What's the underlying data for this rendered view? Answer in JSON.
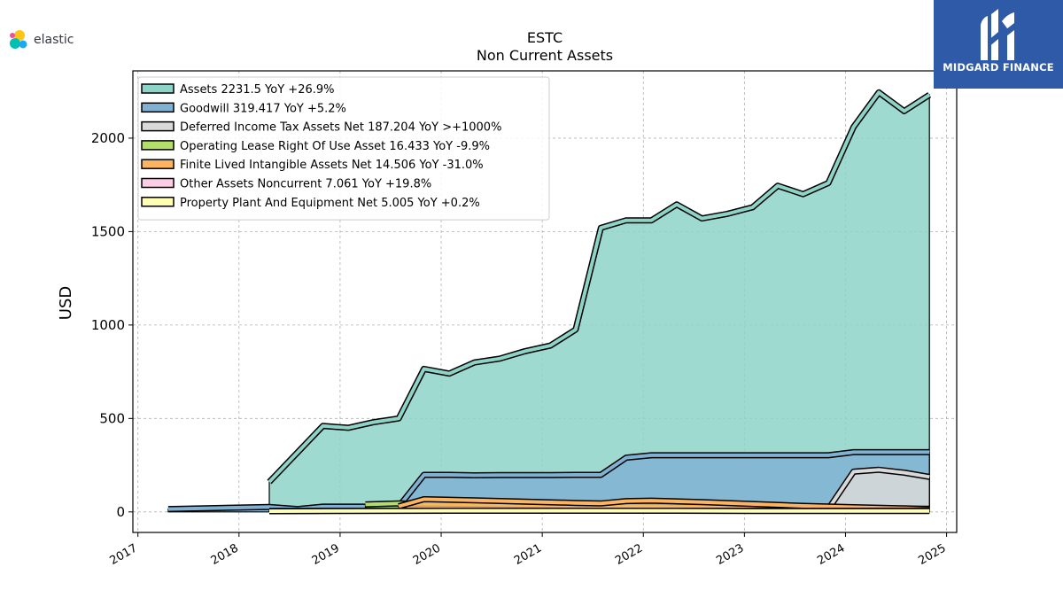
{
  "header": {
    "elastic_text": "elastic"
  },
  "brand": {
    "name": "MIDGARD FINANCE",
    "bg_color": "#2e5aa8"
  },
  "chart_data": {
    "type": "area",
    "title": "ESTC",
    "subtitle": "Non Current  Assets",
    "ylabel": "USD",
    "xlim": [
      2016.95,
      2025.1
    ],
    "ylim": [
      -110,
      2360
    ],
    "yticks": [
      0,
      500,
      1000,
      1500,
      2000
    ],
    "xticks": [
      2017,
      2018,
      2019,
      2020,
      2021,
      2022,
      2023,
      2024,
      2025
    ],
    "xtick_labels": [
      "2017",
      "2018",
      "2019",
      "2020",
      "2021",
      "2022",
      "2023",
      "2024",
      "2025"
    ],
    "grid": true,
    "legend_position": "top-left",
    "series": [
      {
        "name": "Assets",
        "legend": "Assets  2231.5 YoY +26.9%",
        "color": "#8dd3c7",
        "x": [
          2018.3,
          2018.83,
          2019.08,
          2019.33,
          2019.58,
          2019.83,
          2020.08,
          2020.33,
          2020.58,
          2020.83,
          2021.08,
          2021.33,
          2021.58,
          2021.83,
          2022.08,
          2022.33,
          2022.58,
          2022.83,
          2023.08,
          2023.33,
          2023.58,
          2023.83,
          2024.08,
          2024.33,
          2024.58,
          2024.83
        ],
        "values": [
          160,
          460,
          450,
          480,
          500,
          765,
          740,
          800,
          820,
          860,
          890,
          975,
          1520,
          1560,
          1560,
          1645,
          1570,
          1595,
          1630,
          1745,
          1700,
          1760,
          2060,
          2245,
          2145,
          2231.5
        ]
      },
      {
        "name": "Goodwill",
        "legend": "Goodwill  319.417 YoY +5.2%",
        "color": "#80b1d3",
        "x": [
          2017.3,
          2018.3,
          2018.58,
          2018.83,
          2019.08,
          2019.33,
          2019.58,
          2019.83,
          2020.08,
          2020.33,
          2020.58,
          2020.83,
          2021.08,
          2021.33,
          2021.58,
          2021.83,
          2022.08,
          2022.33,
          2022.58,
          2022.83,
          2023.08,
          2023.33,
          2023.58,
          2023.83,
          2024.08,
          2024.33,
          2024.58,
          2024.83
        ],
        "values": [
          15,
          26,
          15,
          28,
          28,
          28,
          28,
          198,
          198,
          196,
          197,
          197,
          197,
          198,
          198,
          290,
          303,
          303,
          303,
          303,
          303,
          303,
          303,
          303,
          319.4,
          319.4,
          319.4,
          319.417
        ]
      },
      {
        "name": "Deferred Income Tax Assets Net",
        "legend": "Deferred Income Tax Assets Net  187.204 YoY >+1000%",
        "color": "#d9d9d9",
        "x": [
          2023.83,
          2024.08,
          2024.33,
          2024.58,
          2024.83
        ],
        "values": [
          15,
          215,
          225,
          210,
          187.204
        ]
      },
      {
        "name": "Operating Lease Right Of Use Asset",
        "legend": "Operating Lease Right Of Use Asset  16.433 YoY -9.9%",
        "color": "#b3de69",
        "x": [
          2019.25,
          2019.58,
          2019.83,
          2020.08,
          2020.58,
          2021.08,
          2021.58,
          2022.08,
          2022.58,
          2023.08,
          2023.58,
          2024.08,
          2024.58,
          2024.83
        ],
        "values": [
          40,
          45,
          43,
          42,
          38,
          35,
          32,
          28,
          25,
          22,
          20,
          18,
          17,
          16.433
        ]
      },
      {
        "name": "Finite Lived Intangible Assets Net",
        "legend": "Finite Lived Intangible Assets Net  14.506 YoY -31.0%",
        "color": "#fdb462",
        "x": [
          2019.58,
          2019.83,
          2020.33,
          2020.83,
          2021.33,
          2021.58,
          2021.83,
          2022.08,
          2022.58,
          2023.08,
          2023.58,
          2024.08,
          2024.58,
          2024.83
        ],
        "values": [
          30,
          68,
          62,
          55,
          48,
          45,
          58,
          60,
          52,
          42,
          32,
          25,
          19,
          14.506
        ]
      },
      {
        "name": "Other Assets Noncurrent",
        "legend": "Other Assets Noncurrent  7.061 YoY +19.8%",
        "color": "#fccde5",
        "x": [
          2018.3,
          2019.08,
          2020.08,
          2021.08,
          2022.08,
          2023.08,
          2024.08,
          2024.83
        ],
        "values": [
          5,
          6,
          6,
          6,
          6,
          6,
          6,
          7.061
        ]
      },
      {
        "name": "Property Plant And Equipment Net",
        "legend": "Property Plant And Equipment Net  5.005 YoY +0.2%",
        "color": "#ffffb3",
        "x": [
          2018.3,
          2019.08,
          2020.08,
          2021.08,
          2022.08,
          2023.08,
          2024.08,
          2024.83
        ],
        "values": [
          4,
          5,
          6,
          6,
          6,
          5,
          5,
          5.005
        ]
      }
    ]
  }
}
